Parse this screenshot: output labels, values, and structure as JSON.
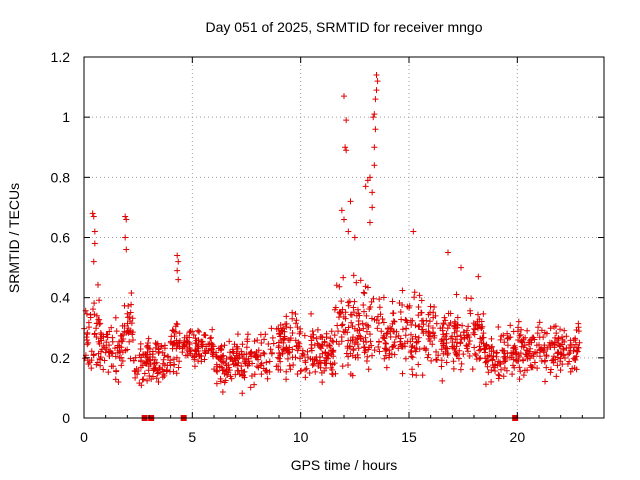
{
  "chart_data": {
    "type": "scatter",
    "title": "Day 051 of 2025, SRMTID for receiver mngo",
    "xlabel": "GPS time / hours",
    "ylabel": "SRMTID / TECUs",
    "xlim": [
      0,
      24
    ],
    "ylim": [
      0,
      1.2
    ],
    "x_ticks": [
      0,
      5,
      10,
      15,
      20
    ],
    "x_tick_labels": [
      "0",
      "5",
      "10",
      "15",
      "20"
    ],
    "y_ticks": [
      0,
      0.2,
      0.4,
      0.6,
      0.8,
      1.0,
      1.2
    ],
    "y_tick_labels": [
      "0",
      "0.2",
      "0.4",
      "0.6",
      "0.8",
      "1",
      "1.2"
    ],
    "grid": true,
    "marker": "plus",
    "series_color": "#e00000",
    "baseline_points": [
      [
        2.8,
        0
      ],
      [
        3.1,
        0
      ],
      [
        4.6,
        0
      ],
      [
        19.9,
        0
      ]
    ],
    "spike_points": [
      [
        0.4,
        0.68
      ],
      [
        0.45,
        0.67
      ],
      [
        0.5,
        0.62
      ],
      [
        0.5,
        0.58
      ],
      [
        0.45,
        0.52
      ],
      [
        1.9,
        0.67
      ],
      [
        1.95,
        0.66
      ],
      [
        1.9,
        0.6
      ],
      [
        1.95,
        0.56
      ],
      [
        4.3,
        0.54
      ],
      [
        4.35,
        0.52
      ],
      [
        4.3,
        0.49
      ],
      [
        4.35,
        0.46
      ],
      [
        12.0,
        1.07
      ],
      [
        12.1,
        0.99
      ],
      [
        12.05,
        0.9
      ],
      [
        12.1,
        0.89
      ],
      [
        11.9,
        0.69
      ],
      [
        12.0,
        0.66
      ],
      [
        12.2,
        0.62
      ],
      [
        12.3,
        0.72
      ],
      [
        12.5,
        0.6
      ],
      [
        13.0,
        0.77
      ],
      [
        13.1,
        0.79
      ],
      [
        13.2,
        0.8
      ],
      [
        13.3,
        0.75
      ],
      [
        13.4,
        0.84
      ],
      [
        13.35,
        1.0
      ],
      [
        13.4,
        1.01
      ],
      [
        13.45,
        1.06
      ],
      [
        13.5,
        1.09
      ],
      [
        13.55,
        1.12
      ],
      [
        13.5,
        1.14
      ],
      [
        13.45,
        0.96
      ],
      [
        13.4,
        0.9
      ],
      [
        13.3,
        0.7
      ],
      [
        13.2,
        0.65
      ],
      [
        15.2,
        0.62
      ],
      [
        16.8,
        0.55
      ],
      [
        17.4,
        0.5
      ],
      [
        18.2,
        0.47
      ]
    ],
    "bands": [
      {
        "x": [
          0,
          0.3
        ],
        "y_lo": 0.1,
        "y_hi": 0.45
      },
      {
        "x": [
          0.3,
          0.7
        ],
        "y_lo": 0.08,
        "y_hi": 0.5
      },
      {
        "x": [
          0.7,
          1.8
        ],
        "y_lo": 0.1,
        "y_hi": 0.38
      },
      {
        "x": [
          1.8,
          2.3
        ],
        "y_lo": 0.15,
        "y_hi": 0.45
      },
      {
        "x": [
          2.3,
          4.0
        ],
        "y_lo": 0.08,
        "y_hi": 0.28
      },
      {
        "x": [
          4.0,
          4.6
        ],
        "y_lo": 0.12,
        "y_hi": 0.35
      },
      {
        "x": [
          4.6,
          6.0
        ],
        "y_lo": 0.15,
        "y_hi": 0.32
      },
      {
        "x": [
          6.0,
          8.5
        ],
        "y_lo": 0.07,
        "y_hi": 0.3
      },
      {
        "x": [
          8.5,
          10.0
        ],
        "y_lo": 0.1,
        "y_hi": 0.38
      },
      {
        "x": [
          10.0,
          11.5
        ],
        "y_lo": 0.08,
        "y_hi": 0.35
      },
      {
        "x": [
          11.5,
          13.8
        ],
        "y_lo": 0.1,
        "y_hi": 0.5
      },
      {
        "x": [
          13.8,
          16.0
        ],
        "y_lo": 0.1,
        "y_hi": 0.44
      },
      {
        "x": [
          16.0,
          18.5
        ],
        "y_lo": 0.1,
        "y_hi": 0.44
      },
      {
        "x": [
          18.5,
          20.0
        ],
        "y_lo": 0.1,
        "y_hi": 0.32
      },
      {
        "x": [
          20.0,
          22.8
        ],
        "y_lo": 0.09,
        "y_hi": 0.35
      },
      {
        "x": [
          22.8,
          22.9
        ],
        "y_lo": 0.15,
        "y_hi": 0.43
      }
    ],
    "band_point_density_per_hour": 60,
    "random_seed": 51
  }
}
